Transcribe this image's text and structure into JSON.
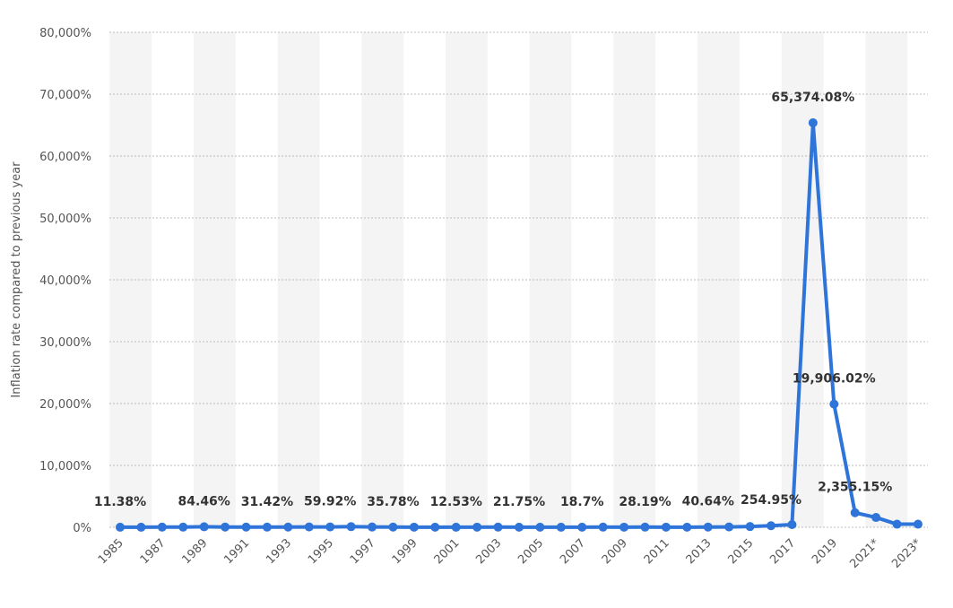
{
  "chart_data": {
    "type": "line",
    "y_label": "Inflation rate compared to previous year",
    "categories": [
      "1985",
      null,
      "1987",
      null,
      "1989",
      null,
      "1991",
      null,
      "1993",
      null,
      "1995",
      null,
      "1997",
      null,
      "1999",
      null,
      "2001",
      null,
      "2003",
      null,
      "2005",
      null,
      "2007",
      null,
      "2009",
      null,
      "2011",
      null,
      "2013",
      null,
      "2015",
      null,
      "2017",
      null,
      "2019",
      null,
      "2021*",
      null,
      "2023*"
    ],
    "series": [
      {
        "name": "Inflation rate",
        "color": "#2f74d9",
        "values": [
          11.38,
          11.5,
          28.1,
          29.5,
          84.46,
          40.7,
          34.2,
          31.42,
          38.1,
          60.8,
          59.92,
          99.88,
          50.0,
          35.78,
          23.6,
          16.2,
          12.53,
          22.4,
          31.1,
          21.75,
          16.0,
          13.7,
          18.7,
          31.4,
          27.1,
          28.19,
          26.1,
          21.1,
          40.64,
          62.2,
          121.7,
          254.95,
          438.1,
          65374.08,
          19906.02,
          2355.15,
          1588.5,
          500,
          500
        ],
        "value_labels": [
          "11.38%",
          null,
          null,
          null,
          "84.46%",
          null,
          null,
          "31.42%",
          null,
          null,
          "59.92%",
          null,
          null,
          "35.78%",
          null,
          null,
          "12.53%",
          null,
          null,
          "21.75%",
          null,
          null,
          "18.7%",
          null,
          null,
          "28.19%",
          null,
          null,
          "40.64%",
          null,
          null,
          "254.95%",
          null,
          "65,374.08%",
          "19,906.02%",
          "2,355.15%",
          null,
          null,
          null
        ]
      }
    ],
    "ylim": [
      0,
      80000
    ],
    "yticks": [
      {
        "value": 0,
        "label": "0%"
      },
      {
        "value": 10000,
        "label": "10,000%"
      },
      {
        "value": 20000,
        "label": "20,000%"
      },
      {
        "value": 30000,
        "label": "30,000%"
      },
      {
        "value": 40000,
        "label": "40,000%"
      },
      {
        "value": 50000,
        "label": "50,000%"
      },
      {
        "value": 60000,
        "label": "60,000%"
      },
      {
        "value": 70000,
        "label": "70,000%"
      },
      {
        "value": 80000,
        "label": "80,000%"
      }
    ],
    "grid": true
  }
}
